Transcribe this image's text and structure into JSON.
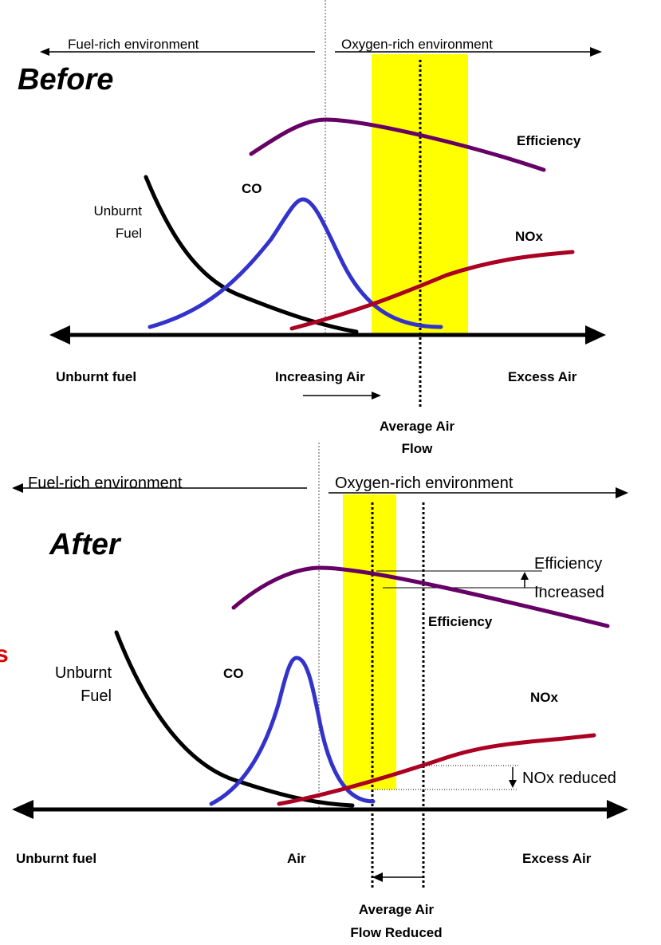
{
  "before": {
    "title": "Before",
    "left_environment": "Fuel-rich environment",
    "right_environment": "Oxygen-rich environment",
    "efficiency_label": "Efficiency",
    "co_label": "CO",
    "unburnt_label": [
      "Unburnt",
      "Fuel"
    ],
    "nox_label": "NOx",
    "axis_left": "Unburnt fuel",
    "axis_middle": "Increasing Air",
    "axis_right": "Excess Air",
    "average_label": [
      "Average Air",
      "Flow"
    ]
  },
  "after": {
    "title": "After",
    "left_environment": "Fuel-rich environment",
    "right_environment": "Oxygen-rich environment",
    "efficiency_change": [
      "Efficiency",
      "Increased"
    ],
    "efficiency_label": "Efficiency",
    "co_label": "CO",
    "unburnt_label": [
      "Unburnt",
      "Fuel"
    ],
    "nox_label": "NOx",
    "nox_change": "NOx reduced",
    "axis_left": "Unburnt fuel",
    "axis_middle": "Air",
    "axis_right": "Excess Air",
    "average_label": [
      "Average Air",
      "Flow Reduced"
    ],
    "edge_fragment": "s"
  }
}
